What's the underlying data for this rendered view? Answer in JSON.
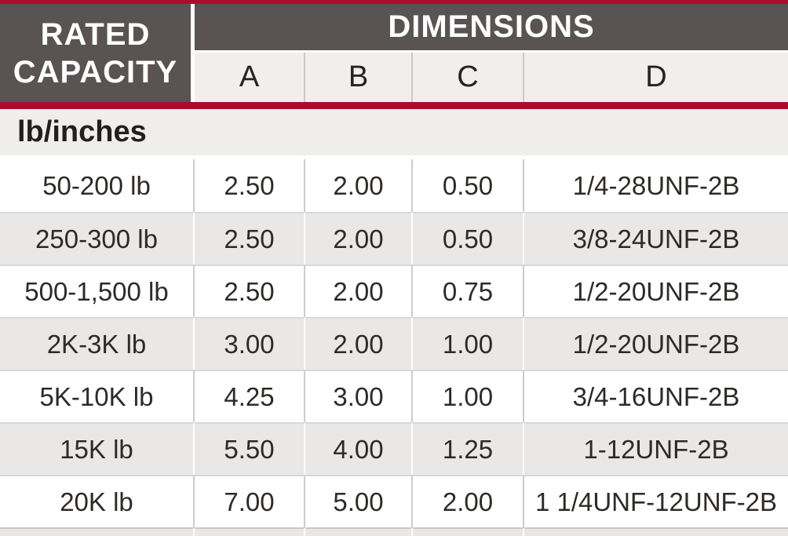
{
  "header": {
    "rated_capacity_label": "RATED CAPACITY",
    "dimensions_label": "DIMENSIONS",
    "dimension_columns": [
      "A",
      "B",
      "C",
      "D"
    ]
  },
  "units_label": "lb/inches",
  "rows": [
    {
      "capacity": "50-200 lb",
      "a": "2.50",
      "b": "2.00",
      "c": "0.50",
      "d": "1/4-28UNF-2B"
    },
    {
      "capacity": "250-300 lb",
      "a": "2.50",
      "b": "2.00",
      "c": "0.50",
      "d": "3/8-24UNF-2B"
    },
    {
      "capacity": "500-1,500 lb",
      "a": "2.50",
      "b": "2.00",
      "c": "0.75",
      "d": "1/2-20UNF-2B"
    },
    {
      "capacity": "2K-3K lb",
      "a": "3.00",
      "b": "2.00",
      "c": "1.00",
      "d": "1/2-20UNF-2B"
    },
    {
      "capacity": "5K-10K lb",
      "a": "4.25",
      "b": "3.00",
      "c": "1.00",
      "d": "3/4-16UNF-2B"
    },
    {
      "capacity": "15K lb",
      "a": "5.50",
      "b": "4.00",
      "c": "1.25",
      "d": "1-12UNF-2B"
    },
    {
      "capacity": "20K lb",
      "a": "7.00",
      "b": "5.00",
      "c": "2.00",
      "d": "1 1/4UNF-12UNF-2B"
    }
  ],
  "colors": {
    "accent_red": "#ad0c2f",
    "header_gray": "#595353",
    "alt_row_gray": "#e9e8e7"
  },
  "chart_data": {
    "type": "table",
    "title": "DIMENSIONS",
    "units": "lb/inches",
    "columns": [
      "RATED CAPACITY",
      "A",
      "B",
      "C",
      "D"
    ],
    "rows": [
      [
        "50-200 lb",
        2.5,
        2.0,
        0.5,
        "1/4-28UNF-2B"
      ],
      [
        "250-300 lb",
        2.5,
        2.0,
        0.5,
        "3/8-24UNF-2B"
      ],
      [
        "500-1,500 lb",
        2.5,
        2.0,
        0.75,
        "1/2-20UNF-2B"
      ],
      [
        "2K-3K lb",
        3.0,
        2.0,
        1.0,
        "1/2-20UNF-2B"
      ],
      [
        "5K-10K lb",
        4.25,
        3.0,
        1.0,
        "3/4-16UNF-2B"
      ],
      [
        "15K lb",
        5.5,
        4.0,
        1.25,
        "1-12UNF-2B"
      ],
      [
        "20K lb",
        7.0,
        5.0,
        2.0,
        "1 1/4UNF-12UNF-2B"
      ]
    ]
  }
}
